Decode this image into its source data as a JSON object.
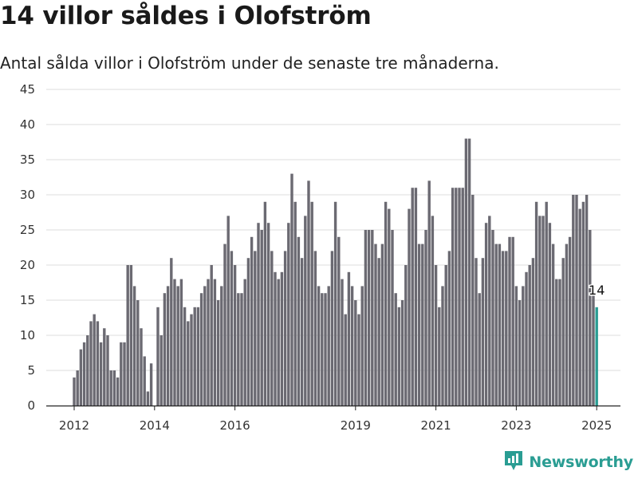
{
  "title": "14 villor såldes i Olofström",
  "subtitle": "Antal sålda villor i Olofström under de senaste tre månaderna.",
  "brand": {
    "name": "Newsworthy",
    "icon": "newsworthy-logo-icon",
    "color": "#2a9d93"
  },
  "chart_data": {
    "type": "bar",
    "start_month": "2012-01",
    "values": [
      4,
      5,
      8,
      9,
      10,
      12,
      13,
      12,
      9,
      11,
      10,
      5,
      5,
      4,
      9,
      9,
      20,
      20,
      17,
      15,
      11,
      7,
      2,
      6,
      0,
      14,
      10,
      16,
      17,
      21,
      18,
      17,
      18,
      14,
      12,
      13,
      14,
      14,
      16,
      17,
      18,
      20,
      18,
      15,
      17,
      23,
      27,
      22,
      20,
      16,
      16,
      18,
      21,
      24,
      22,
      26,
      25,
      29,
      26,
      22,
      19,
      18,
      19,
      22,
      26,
      33,
      29,
      24,
      21,
      27,
      32,
      29,
      22,
      17,
      16,
      16,
      17,
      22,
      29,
      24,
      18,
      13,
      19,
      17,
      15,
      13,
      17,
      25,
      25,
      25,
      23,
      21,
      23,
      29,
      28,
      25,
      16,
      14,
      15,
      20,
      28,
      31,
      31,
      23,
      23,
      25,
      32,
      27,
      20,
      14,
      17,
      20,
      22,
      31,
      31,
      31,
      31,
      38,
      38,
      30,
      21,
      16,
      21,
      26,
      27,
      25,
      23,
      23,
      22,
      22,
      24,
      24,
      17,
      15,
      17,
      19,
      20,
      21,
      29,
      27,
      27,
      29,
      26,
      23,
      18,
      18,
      21,
      23,
      24,
      30,
      30,
      28,
      29,
      30,
      25,
      16,
      14
    ],
    "x_ticks": [
      "2012",
      "2014",
      "2016",
      "2019",
      "2021",
      "2023",
      "2025"
    ],
    "y_ticks": [
      0,
      5,
      10,
      15,
      20,
      25,
      30,
      35,
      40,
      45
    ],
    "ylim": [
      0,
      45
    ],
    "last_value_label": "14",
    "bar_color": "#6b6a72",
    "highlight_color": "#2a9d93",
    "grid": true
  }
}
